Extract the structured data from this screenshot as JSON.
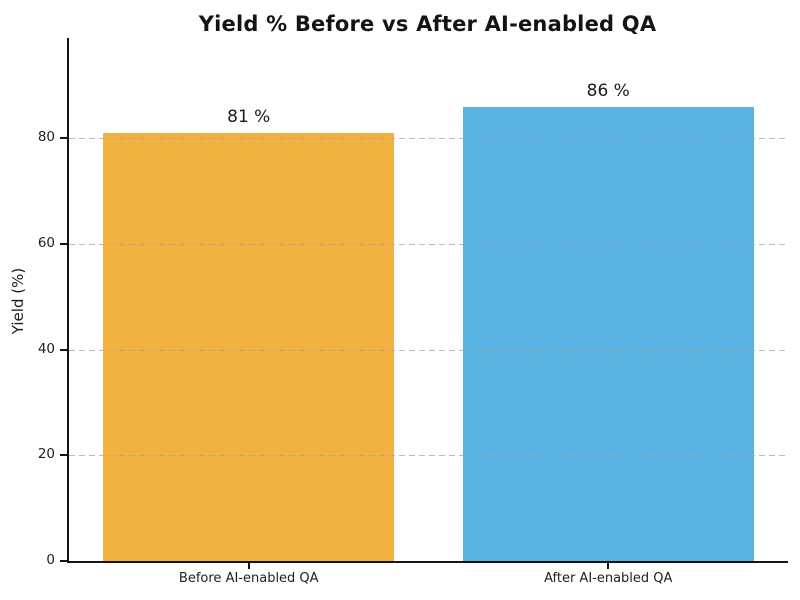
{
  "chart_data": {
    "type": "bar",
    "title": "Yield % Before vs After AI-enabled QA",
    "xlabel": "",
    "ylabel": "Yield (%)",
    "categories": [
      "Before AI-enabled QA",
      "After AI-enabled QA"
    ],
    "values": [
      81,
      86
    ],
    "value_labels": [
      "81 %",
      "86 %"
    ],
    "bar_colors": [
      "#F2B23F",
      "#58B2E2"
    ],
    "ylim": [
      0,
      99
    ],
    "yticks": [
      0,
      20,
      40,
      60,
      80
    ],
    "grid": "horizontal dashed gridlines at y-ticks, drawn over bars",
    "legend_position": "none",
    "background_color": "#ffffff",
    "spine_color": "#141414"
  }
}
